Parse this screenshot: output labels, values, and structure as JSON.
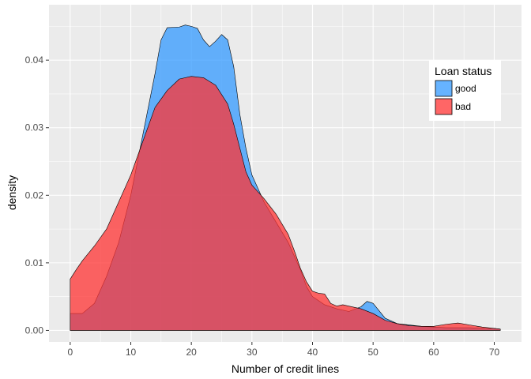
{
  "chart_data": {
    "type": "area",
    "xlabel": "Number of credit lines",
    "ylabel": "density",
    "xlim": [
      -3.5,
      74.5
    ],
    "ylim": [
      -0.0017,
      0.0482
    ],
    "x_ticks": [
      0,
      10,
      20,
      30,
      40,
      50,
      60,
      70
    ],
    "x_tick_labels": [
      "0",
      "10",
      "20",
      "30",
      "40",
      "50",
      "60",
      "70"
    ],
    "y_ticks": [
      0.0,
      0.01,
      0.02,
      0.03,
      0.04
    ],
    "y_tick_labels": [
      "0.00",
      "0.01",
      "0.02",
      "0.03",
      "0.04"
    ],
    "grid": true,
    "legend": {
      "title": "Loan status",
      "position": "top-right",
      "entries": [
        "good",
        "bad"
      ]
    },
    "colors": {
      "panel": "#ebebeb",
      "grid": "#ffffff",
      "outline": "#000000"
    },
    "series": [
      {
        "name": "good",
        "color": "#3399ff",
        "points": [
          [
            0,
            0.0025
          ],
          [
            2,
            0.0025
          ],
          [
            4,
            0.004
          ],
          [
            6,
            0.008
          ],
          [
            8,
            0.013
          ],
          [
            10,
            0.02
          ],
          [
            12,
            0.029
          ],
          [
            14,
            0.038
          ],
          [
            15,
            0.043
          ],
          [
            16,
            0.0448
          ],
          [
            18,
            0.0449
          ],
          [
            19,
            0.0452
          ],
          [
            20,
            0.045
          ],
          [
            21,
            0.0447
          ],
          [
            22,
            0.043
          ],
          [
            23,
            0.042
          ],
          [
            24,
            0.0428
          ],
          [
            25,
            0.0438
          ],
          [
            26,
            0.043
          ],
          [
            27,
            0.039
          ],
          [
            28,
            0.032
          ],
          [
            29,
            0.027
          ],
          [
            30,
            0.023
          ],
          [
            32,
            0.019
          ],
          [
            34,
            0.016
          ],
          [
            36,
            0.013
          ],
          [
            38,
            0.009
          ],
          [
            39,
            0.0065
          ],
          [
            40,
            0.005
          ],
          [
            42,
            0.0038
          ],
          [
            44,
            0.0032
          ],
          [
            46,
            0.0028
          ],
          [
            48,
            0.0035
          ],
          [
            49,
            0.0043
          ],
          [
            50,
            0.004
          ],
          [
            52,
            0.0018
          ],
          [
            54,
            0.001
          ],
          [
            56,
            0.0008
          ],
          [
            58,
            0.0006
          ],
          [
            60,
            0.0005
          ],
          [
            62,
            0.0004
          ],
          [
            64,
            0.0004
          ],
          [
            66,
            0.0004
          ],
          [
            68,
            0.0003
          ],
          [
            70,
            0.0003
          ],
          [
            71,
            0.0002
          ]
        ]
      },
      {
        "name": "bad",
        "color": "#ff3333",
        "points": [
          [
            0,
            0.0076
          ],
          [
            1,
            0.009
          ],
          [
            2,
            0.0103
          ],
          [
            4,
            0.0125
          ],
          [
            6,
            0.015
          ],
          [
            8,
            0.019
          ],
          [
            10,
            0.023
          ],
          [
            12,
            0.028
          ],
          [
            14,
            0.033
          ],
          [
            16,
            0.0355
          ],
          [
            18,
            0.0372
          ],
          [
            20,
            0.0376
          ],
          [
            22,
            0.0374
          ],
          [
            24,
            0.0363
          ],
          [
            26,
            0.0335
          ],
          [
            27,
            0.0305
          ],
          [
            28,
            0.027
          ],
          [
            29,
            0.0235
          ],
          [
            30,
            0.0215
          ],
          [
            32,
            0.0195
          ],
          [
            34,
            0.0172
          ],
          [
            36,
            0.0142
          ],
          [
            37,
            0.0118
          ],
          [
            38,
            0.0092
          ],
          [
            39,
            0.0072
          ],
          [
            40,
            0.0058
          ],
          [
            41,
            0.0055
          ],
          [
            42,
            0.0054
          ],
          [
            43,
            0.004
          ],
          [
            44,
            0.0036
          ],
          [
            45,
            0.0038
          ],
          [
            46,
            0.0036
          ],
          [
            48,
            0.0032
          ],
          [
            50,
            0.0025
          ],
          [
            52,
            0.0015
          ],
          [
            54,
            0.001
          ],
          [
            56,
            0.0007
          ],
          [
            58,
            0.0006
          ],
          [
            60,
            0.0006
          ],
          [
            62,
            0.0009
          ],
          [
            64,
            0.0011
          ],
          [
            66,
            0.0008
          ],
          [
            68,
            0.0005
          ],
          [
            70,
            0.0003
          ],
          [
            71,
            0.0002
          ]
        ]
      }
    ]
  }
}
